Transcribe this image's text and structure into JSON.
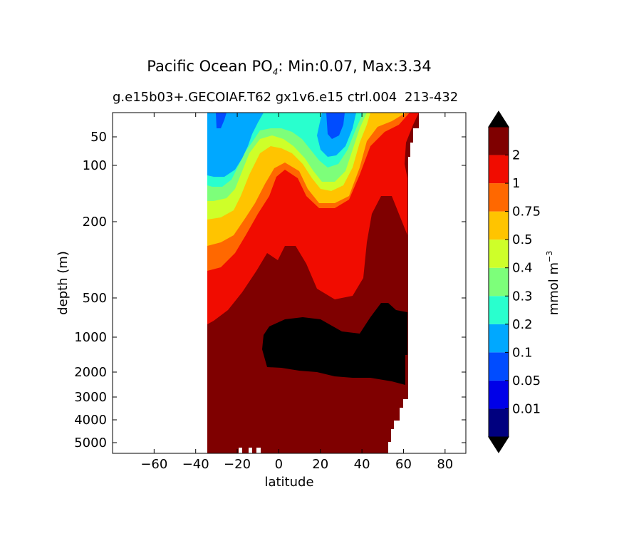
{
  "chart_data": {
    "type": "filled-contour",
    "title": {
      "main": "Pacific Ocean PO",
      "sub": "4",
      "rest": ": Min:0.07, Max:3.34"
    },
    "subtitle": "g.e15b03+.GECOIAF.T62 gx1v6.e15 ctrl.004",
    "subtitle_overlap": "213-432",
    "xlabel": "latitude",
    "ylabel": "depth (m)",
    "xlim": [
      -80,
      90
    ],
    "x_ticks": [
      -60,
      -40,
      -20,
      0,
      20,
      40,
      60,
      80
    ],
    "x_tick_labels": [
      "−60",
      "−40",
      "−20",
      "0",
      "20",
      "40",
      "60",
      "80"
    ],
    "y_scale": "stretched depth (inverted)",
    "y_ticks": [
      50,
      100,
      200,
      500,
      1000,
      2000,
      3000,
      4000,
      5000
    ],
    "y_tick_labels": [
      "50",
      "100",
      "200",
      "500",
      "1000",
      "2000",
      "3000",
      "4000",
      "5000"
    ],
    "ocean_extent_lat": [
      -34,
      67
    ],
    "colorbar": {
      "label": "mmol m",
      "label_sup": "−3",
      "levels": [
        0.01,
        0.05,
        0.1,
        0.2,
        0.3,
        0.4,
        0.5,
        0.75,
        1,
        2
      ],
      "level_labels": [
        "0.01",
        "0.05",
        "0.1",
        "0.2",
        "0.3",
        "0.4",
        "0.5",
        "0.75",
        "1",
        "2"
      ],
      "colors": [
        "#00007f",
        "#0000e8",
        "#004cff",
        "#00a8ff",
        "#29ffce",
        "#7dff7a",
        "#ceff29",
        "#ffc400",
        "#ff6800",
        "#f10c00",
        "#7f0000"
      ],
      "over_color": "#000000",
      "under_color": "#000000",
      "extend": "both"
    },
    "field_summary": "Low PO4 (<0.3) in surface waters near 30S and 25N; values rise with depth to 1-2 in the thermocline and >2 below ~800 m; maximum (>3) core between ~1000-2500 m spreading from -8 to 60N"
  }
}
